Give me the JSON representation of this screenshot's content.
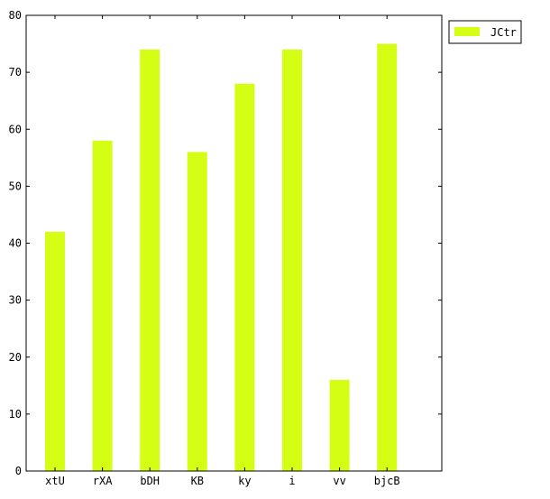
{
  "chart_data": {
    "type": "bar",
    "title": "",
    "xlabel": "",
    "ylabel": "",
    "categories": [
      "xtU",
      "rXA",
      "bDH",
      "KB",
      "ky",
      "i",
      "vv",
      "bjcB"
    ],
    "series": [
      {
        "name": "JCtr",
        "values": [
          42,
          58,
          74,
          56,
          68,
          74,
          16,
          75
        ],
        "color": "#d4ff14"
      }
    ],
    "ylim": [
      0,
      80
    ],
    "yticks": [
      0,
      10,
      20,
      30,
      40,
      50,
      60,
      70,
      80
    ],
    "grid": false,
    "legend_position": "top-right, outside plot"
  }
}
